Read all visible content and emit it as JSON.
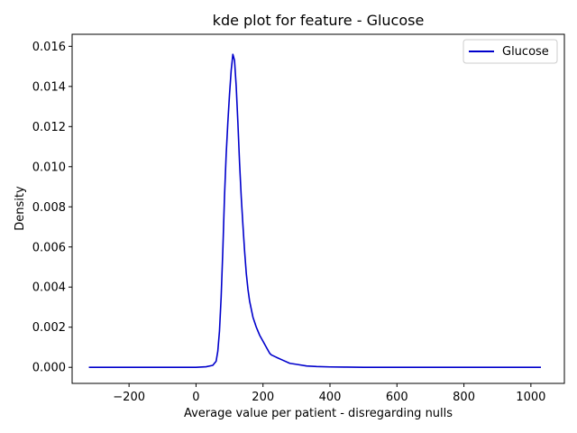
{
  "chart_data": {
    "type": "line",
    "title": "kde plot for feature -  Glucose",
    "xlabel": "Average value per patient - disregarding nulls",
    "ylabel": "Density",
    "xlim": [
      -370,
      1100
    ],
    "ylim": [
      -0.0008,
      0.0166
    ],
    "xticks": [
      -200,
      0,
      200,
      400,
      600,
      800,
      1000
    ],
    "xtick_labels": [
      "−200",
      "0",
      "200",
      "400",
      "600",
      "800",
      "1000"
    ],
    "yticks": [
      0.0,
      0.002,
      0.004,
      0.006,
      0.008,
      0.01,
      0.012,
      0.014,
      0.016
    ],
    "ytick_labels": [
      "0.000",
      "0.002",
      "0.004",
      "0.006",
      "0.008",
      "0.010",
      "0.012",
      "0.014",
      "0.016"
    ],
    "grid": false,
    "legend": {
      "position": "top-right"
    },
    "series": [
      {
        "name": "Glucose",
        "color": "#0000cc",
        "x": [
          -320,
          -200,
          -100,
          0,
          30,
          50,
          60,
          65,
          70,
          75,
          80,
          85,
          90,
          95,
          100,
          105,
          110,
          115,
          120,
          125,
          130,
          135,
          140,
          145,
          150,
          155,
          160,
          170,
          180,
          190,
          200,
          210,
          220,
          225,
          240,
          260,
          280,
          300,
          330,
          360,
          400,
          450,
          500,
          600,
          700,
          800,
          900,
          1030
        ],
        "y": [
          0.0,
          0.0,
          0.0,
          0.0,
          3e-05,
          0.0001,
          0.0003,
          0.0008,
          0.0018,
          0.0035,
          0.0058,
          0.0085,
          0.0106,
          0.0122,
          0.0136,
          0.0148,
          0.0156,
          0.0153,
          0.014,
          0.0122,
          0.0102,
          0.0085,
          0.0071,
          0.0058,
          0.0047,
          0.0039,
          0.0033,
          0.0025,
          0.002,
          0.0016,
          0.0013,
          0.001,
          0.0007,
          0.00062,
          0.0005,
          0.00035,
          0.0002,
          0.00015,
          7e-05,
          4e-05,
          2e-05,
          1e-05,
          0.0,
          0.0,
          0.0,
          0.0,
          0.0,
          0.0
        ]
      }
    ]
  }
}
